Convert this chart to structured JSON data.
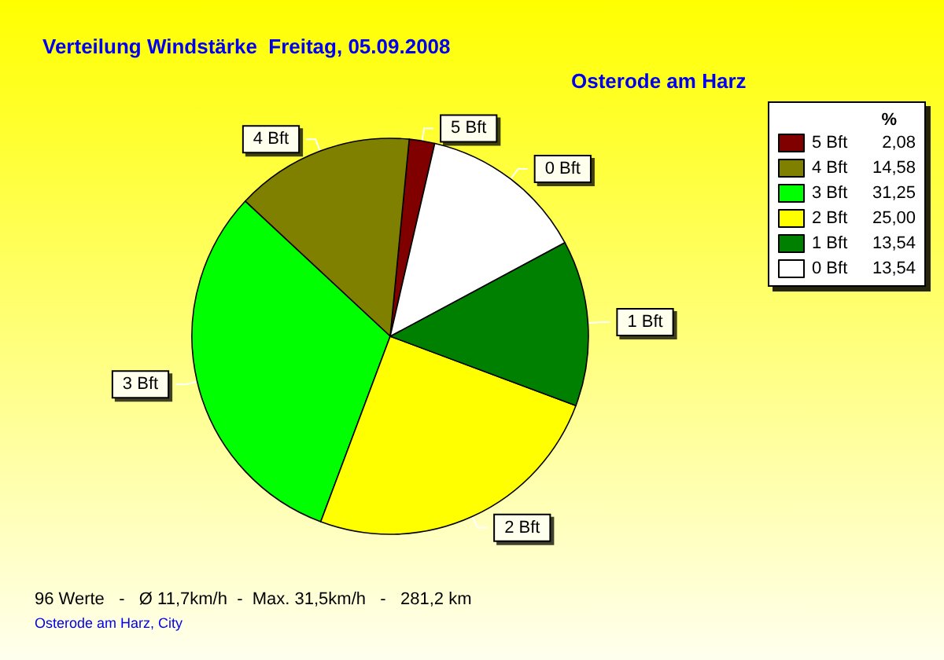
{
  "chart_data": {
    "type": "pie",
    "title": "Verteilung Windstärke  Freitag, 05.09.2008",
    "subtitle": "Osterode am Harz",
    "legend_title": "%",
    "categories": [
      "5 Bft",
      "4 Bft",
      "3 Bft",
      "2 Bft",
      "1 Bft",
      "0 Bft"
    ],
    "values": [
      2.08,
      14.58,
      31.25,
      25.0,
      13.54,
      13.54
    ],
    "value_labels": [
      "2,08",
      "14,58",
      "31,25",
      "25,00",
      "13,54",
      "13,54"
    ],
    "colors": [
      "#800000",
      "#808000",
      "#00ff00",
      "#ffff00",
      "#008000",
      "#ffffff"
    ],
    "legend": "top right",
    "annotations": [
      "96 Werte   -   Ø 11,7km/h  -  Max. 31,5km/h   -   281,2 km",
      "Osterode am Harz, City"
    ]
  }
}
